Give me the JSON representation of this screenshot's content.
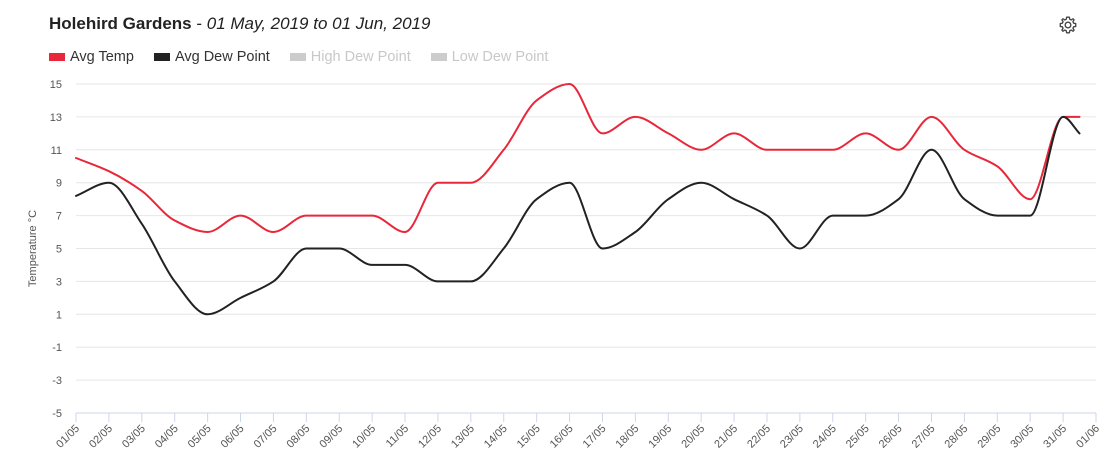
{
  "header": {
    "location": "Holehird Gardens",
    "separator": " - ",
    "date_range": "01 May, 2019 to 01 Jun, 2019"
  },
  "toolbar": {
    "settings_icon": "gear-icon"
  },
  "legend": [
    {
      "label": "Avg Temp",
      "color": "#e8283a",
      "visible": true
    },
    {
      "label": "Avg Dew Point",
      "color": "#222222",
      "visible": true
    },
    {
      "label": "High Dew Point",
      "color": "#cccccc",
      "visible": false
    },
    {
      "label": "Low Dew Point",
      "color": "#cccccc",
      "visible": false
    }
  ],
  "chart_data": {
    "type": "line",
    "ylabel": "Temperature °C",
    "xlabel": "",
    "ylim": [
      -5,
      15
    ],
    "yticks": [
      -5,
      -3,
      -1,
      1,
      3,
      5,
      7,
      9,
      11,
      13,
      15
    ],
    "grid": true,
    "legend_position": "top-left",
    "categories": [
      "01/05",
      "02/05",
      "03/05",
      "04/05",
      "05/05",
      "06/05",
      "07/05",
      "08/05",
      "09/05",
      "10/05",
      "11/05",
      "12/05",
      "13/05",
      "14/05",
      "15/05",
      "16/05",
      "17/05",
      "18/05",
      "19/05",
      "20/05",
      "21/05",
      "22/05",
      "23/05",
      "24/05",
      "25/05",
      "26/05",
      "27/05",
      "28/05",
      "29/05",
      "30/05",
      "31/05",
      "01/06"
    ],
    "series": [
      {
        "name": "Avg Temp",
        "color": "#e8283a",
        "x": [
          "01/05",
          "02/05",
          "03/05",
          "04/05",
          "05/05",
          "06/05",
          "07/05",
          "08/05",
          "09/05",
          "10/05",
          "11/05",
          "12/05",
          "13/05",
          "14/05",
          "15/05",
          "16/05",
          "17/05",
          "18/05",
          "19/05",
          "20/05",
          "21/05",
          "22/05",
          "23/05",
          "24/05",
          "25/05",
          "26/05",
          "27/05",
          "28/05",
          "29/05",
          "30/05",
          "31/05",
          "01/06"
        ],
        "values": [
          10.5,
          9.7,
          8.5,
          6.7,
          6.0,
          7.0,
          6.0,
          7.0,
          7.0,
          7.0,
          6.0,
          9.0,
          9.0,
          11.0,
          14.0,
          15.0,
          12.0,
          13.0,
          12.0,
          11.0,
          12.0,
          11.0,
          11.0,
          11.0,
          12.0,
          11.0,
          13.0,
          11.0,
          10.0,
          8.0,
          13.0,
          13.0
        ]
      },
      {
        "name": "Avg Dew Point",
        "color": "#222222",
        "x": [
          "01/05",
          "02/05",
          "03/05",
          "04/05",
          "05/05",
          "06/05",
          "07/05",
          "08/05",
          "09/05",
          "10/05",
          "11/05",
          "12/05",
          "13/05",
          "14/05",
          "15/05",
          "16/05",
          "17/05",
          "18/05",
          "19/05",
          "20/05",
          "21/05",
          "22/05",
          "23/05",
          "24/05",
          "25/05",
          "26/05",
          "27/05",
          "28/05",
          "29/05",
          "30/05",
          "31/05",
          "01/06"
        ],
        "values": [
          8.2,
          9.0,
          6.5,
          3.0,
          1.0,
          2.0,
          3.0,
          5.0,
          5.0,
          4.0,
          4.0,
          3.0,
          3.0,
          5.0,
          8.0,
          9.0,
          5.0,
          6.0,
          8.0,
          9.0,
          8.0,
          7.0,
          5.0,
          7.0,
          7.0,
          8.0,
          11.0,
          8.0,
          7.0,
          7.0,
          13.0,
          12.0
        ]
      }
    ]
  }
}
